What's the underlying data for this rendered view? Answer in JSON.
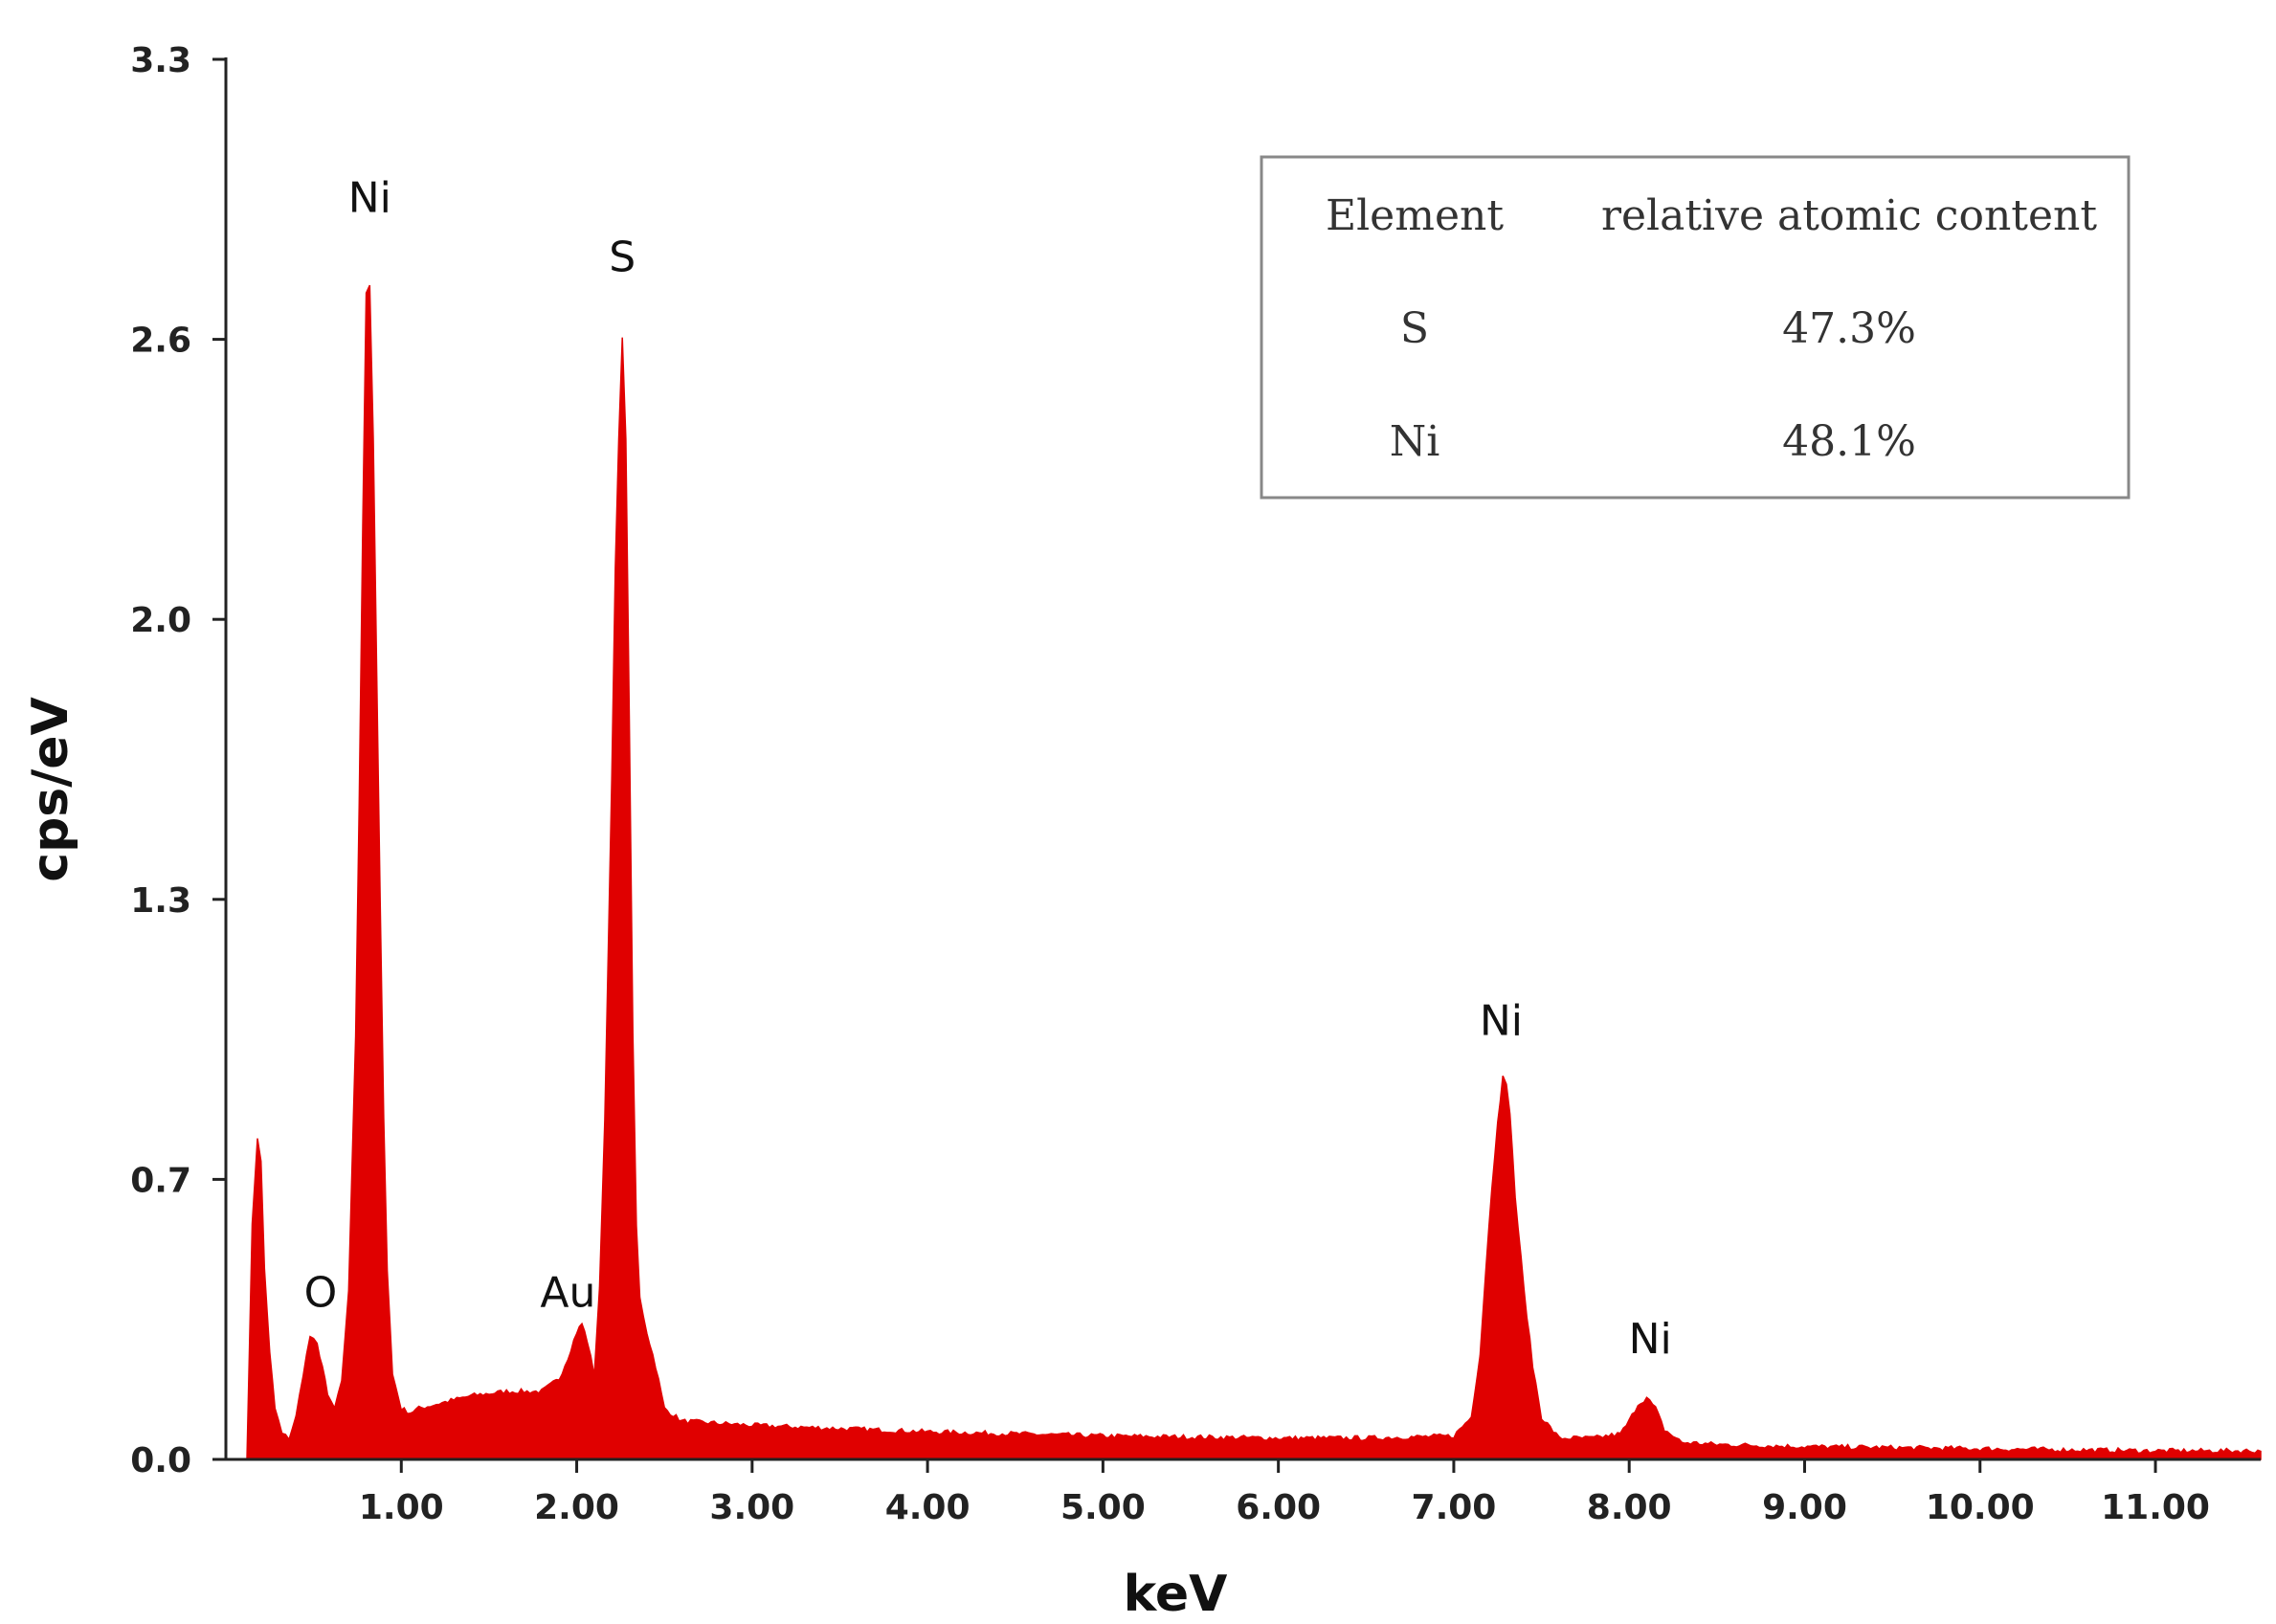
{
  "chart_data": {
    "type": "area",
    "xlabel": "keV",
    "ylabel": "cps/eV",
    "xlim": [
      0,
      11.6
    ],
    "ylim": [
      0,
      3.3
    ],
    "x_ticks": [
      {
        "value": 1,
        "label": "1.00"
      },
      {
        "value": 2,
        "label": "2.00"
      },
      {
        "value": 3,
        "label": "3.00"
      },
      {
        "value": 4,
        "label": "4.00"
      },
      {
        "value": 5,
        "label": "5.00"
      },
      {
        "value": 6,
        "label": "6.00"
      },
      {
        "value": 7,
        "label": "7.00"
      },
      {
        "value": 8,
        "label": "8.00"
      },
      {
        "value": 9,
        "label": "9.00"
      },
      {
        "value": 10,
        "label": "10.00"
      },
      {
        "value": 11,
        "label": "11.00"
      }
    ],
    "y_ticks": [
      {
        "value": 0.0,
        "label": "0.0"
      },
      {
        "value": 0.66,
        "label": "0.7"
      },
      {
        "value": 1.32,
        "label": "1.3"
      },
      {
        "value": 1.98,
        "label": "2.0"
      },
      {
        "value": 2.64,
        "label": "2.6"
      },
      {
        "value": 3.3,
        "label": "3.3"
      }
    ],
    "color": "#e00000",
    "spectrum": {
      "x": [
        0.12,
        0.15,
        0.18,
        0.2,
        0.22,
        0.25,
        0.28,
        0.32,
        0.36,
        0.4,
        0.44,
        0.48,
        0.52,
        0.55,
        0.58,
        0.62,
        0.66,
        0.7,
        0.74,
        0.76,
        0.78,
        0.8,
        0.82,
        0.84,
        0.86,
        0.88,
        0.9,
        0.92,
        0.95,
        1.0,
        1.05,
        1.1,
        1.2,
        1.4,
        1.6,
        1.8,
        1.9,
        1.95,
        2.0,
        2.03,
        2.06,
        2.1,
        2.13,
        2.16,
        2.18,
        2.2,
        2.22,
        2.24,
        2.26,
        2.28,
        2.3,
        2.32,
        2.34,
        2.36,
        2.4,
        2.45,
        2.5,
        2.6,
        3.0,
        4.0,
        5.0,
        6.0,
        6.5,
        7.0,
        7.1,
        7.15,
        7.2,
        7.25,
        7.28,
        7.3,
        7.32,
        7.35,
        7.4,
        7.45,
        7.5,
        7.6,
        7.8,
        7.95,
        8.0,
        8.05,
        8.1,
        8.15,
        8.2,
        8.3,
        8.5,
        9.0,
        10.0,
        11.0,
        11.6
      ],
      "y": [
        0.0,
        0.55,
        0.76,
        0.7,
        0.45,
        0.25,
        0.12,
        0.06,
        0.05,
        0.1,
        0.2,
        0.29,
        0.27,
        0.22,
        0.15,
        0.12,
        0.18,
        0.4,
        1.0,
        1.55,
        2.2,
        2.75,
        2.77,
        2.4,
        1.85,
        1.3,
        0.8,
        0.45,
        0.2,
        0.12,
        0.11,
        0.12,
        0.13,
        0.15,
        0.16,
        0.16,
        0.19,
        0.24,
        0.3,
        0.32,
        0.28,
        0.2,
        0.4,
        0.8,
        1.2,
        1.6,
        2.1,
        2.4,
        2.65,
        2.4,
        1.75,
        1.0,
        0.55,
        0.38,
        0.3,
        0.22,
        0.12,
        0.09,
        0.08,
        0.065,
        0.055,
        0.05,
        0.05,
        0.055,
        0.1,
        0.25,
        0.55,
        0.8,
        0.9,
        0.88,
        0.82,
        0.62,
        0.4,
        0.22,
        0.1,
        0.05,
        0.05,
        0.06,
        0.09,
        0.13,
        0.145,
        0.12,
        0.07,
        0.04,
        0.035,
        0.03,
        0.025,
        0.02,
        0.02
      ]
    },
    "peak_labels": [
      {
        "text": "Ni",
        "x": 0.82,
        "y": 2.94
      },
      {
        "text": "S",
        "x": 2.26,
        "y": 2.8
      },
      {
        "text": "O",
        "x": 0.54,
        "y": 0.36
      },
      {
        "text": "Au",
        "x": 1.95,
        "y": 0.36
      },
      {
        "text": "Ni",
        "x": 7.27,
        "y": 1.0
      },
      {
        "text": "Ni",
        "x": 8.12,
        "y": 0.25
      }
    ],
    "table": {
      "headers": [
        "Element",
        "relative atomic content"
      ],
      "rows": [
        [
          "S",
          "47.3%"
        ],
        [
          "Ni",
          "48.1%"
        ]
      ]
    }
  }
}
